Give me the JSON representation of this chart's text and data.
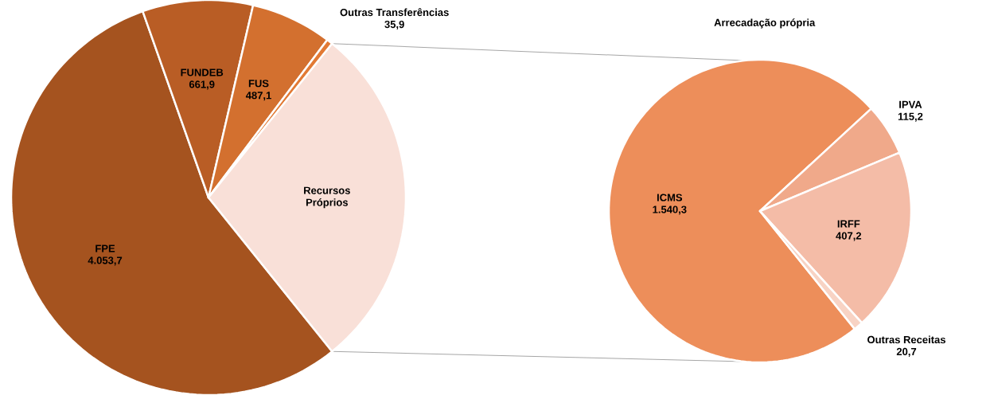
{
  "chart_data": [
    {
      "type": "pie",
      "categories": [
        "FPE",
        "FUNDEB",
        "FUS",
        "Outras Transferências",
        "Recursos Próprios"
      ],
      "values": [
        4053.7,
        661.9,
        487.1,
        35.9,
        2083.4
      ],
      "value_labels": [
        "4.053,7",
        "661,9",
        "487,1",
        "35,9",
        null
      ],
      "colors": [
        "#a5531f",
        "#b95d25",
        "#d3702f",
        "#e27a35",
        "#f9e0d8"
      ]
    },
    {
      "type": "pie",
      "title": "Arrecadação própria",
      "categories": [
        "ICMS",
        "IPVA",
        "IRFF",
        "Outras Receitas"
      ],
      "values": [
        1540.3,
        115.2,
        407.2,
        20.7
      ],
      "value_labels": [
        "1.540,3",
        "115,2",
        "407,2",
        "20,7"
      ],
      "colors": [
        "#ed8e5a",
        "#f0a98a",
        "#f4bca7",
        "#f8d3c4"
      ]
    }
  ]
}
